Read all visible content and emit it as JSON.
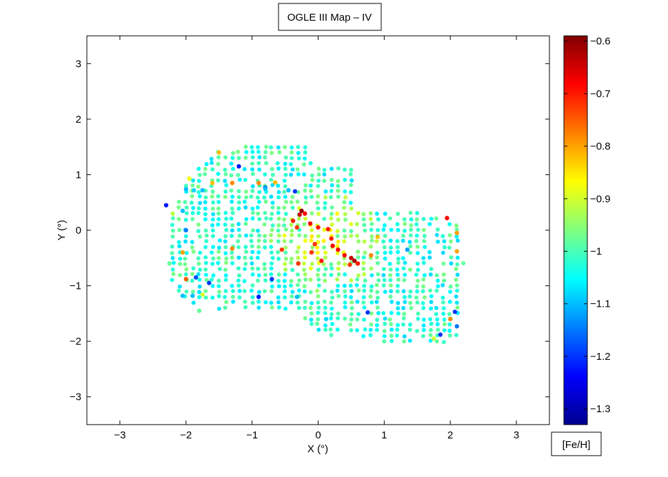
{
  "chart_data": {
    "type": "scatter",
    "title": "OGLE III Map – IV",
    "xlabel": "X (°)",
    "ylabel": "Y (°)",
    "xlim": [
      -3.5,
      3.5
    ],
    "ylim": [
      -3.5,
      3.5
    ],
    "xticks": [
      -3,
      -2,
      -1,
      0,
      1,
      2,
      3
    ],
    "yticks": [
      -3,
      -2,
      -1,
      0,
      1,
      2,
      3
    ],
    "xtick_labels": [
      "−3",
      "−2",
      "−1",
      "0",
      "1",
      "2",
      "3"
    ],
    "ytick_labels": [
      "−3",
      "−2",
      "−1",
      "0",
      "1",
      "2",
      "3"
    ],
    "grid": false,
    "colorbar": {
      "label": "[Fe/H]",
      "range": [
        -1.33,
        -0.59
      ],
      "ticks": [
        -0.6,
        -0.7,
        -0.8,
        -0.9,
        -1.0,
        -1.1,
        -1.2,
        -1.3
      ],
      "tick_labels": [
        "−0.6",
        "−0.7",
        "−0.8",
        "−0.9",
        "−1",
        "−1.1",
        "−1.2",
        "−1.3"
      ],
      "colormap": "jet"
    },
    "points": [
      [
        -1.5,
        1.4,
        -0.82
      ],
      [
        -1.2,
        1.15,
        -1.22
      ],
      [
        -0.35,
        0.7,
        -1.2
      ],
      [
        -0.8,
        0.77,
        -1.17
      ],
      [
        -0.9,
        0.85,
        -0.78
      ],
      [
        -0.65,
        0.86,
        -0.82
      ],
      [
        -1.6,
        0.85,
        -0.82
      ],
      [
        -1.95,
        0.93,
        -0.88
      ],
      [
        -2.3,
        0.45,
        -1.22
      ],
      [
        -2.0,
        0.74,
        -1.1
      ],
      [
        -1.88,
        0.72,
        -1.08
      ],
      [
        -1.75,
        0.72,
        -1.1
      ],
      [
        -2.05,
        0.35,
        -1.1
      ],
      [
        -2.0,
        0.0,
        -1.15
      ],
      [
        -2.05,
        -0.4,
        -0.8
      ],
      [
        -2.0,
        -0.88,
        -0.75
      ],
      [
        -1.85,
        -0.85,
        -1.18
      ],
      [
        -1.65,
        -0.95,
        -1.2
      ],
      [
        -2.05,
        -1.18,
        -1.1
      ],
      [
        -1.9,
        -1.18,
        -1.1
      ],
      [
        -1.75,
        -1.16,
        -0.9
      ],
      [
        -1.8,
        -1.45,
        -0.98
      ],
      [
        -1.3,
        -0.33,
        -0.78
      ],
      [
        -0.7,
        -0.88,
        -1.2
      ],
      [
        -0.9,
        -1.2,
        -1.22
      ],
      [
        -0.25,
        0.35,
        -0.6
      ],
      [
        -0.28,
        0.28,
        -0.65
      ],
      [
        -0.2,
        0.3,
        -0.68
      ],
      [
        -0.38,
        0.17,
        -0.7
      ],
      [
        -0.12,
        0.12,
        -0.68
      ],
      [
        -0.32,
        0.05,
        -0.72
      ],
      [
        0.0,
        0.05,
        -0.7
      ],
      [
        0.15,
        0.02,
        -0.7
      ],
      [
        0.2,
        -0.15,
        -0.7
      ],
      [
        0.22,
        -0.28,
        -0.68
      ],
      [
        0.3,
        -0.35,
        -0.68
      ],
      [
        0.4,
        -0.45,
        -0.68
      ],
      [
        0.5,
        -0.5,
        -0.64
      ],
      [
        0.55,
        -0.55,
        -0.62
      ],
      [
        0.6,
        -0.6,
        -0.7
      ],
      [
        0.48,
        -0.62,
        -0.72
      ],
      [
        -0.05,
        -0.25,
        -0.72
      ],
      [
        -0.1,
        -0.4,
        -0.72
      ],
      [
        0.05,
        -0.55,
        -0.7
      ],
      [
        -0.55,
        -0.35,
        -0.72
      ],
      [
        -0.3,
        -0.6,
        -0.72
      ],
      [
        0.8,
        -0.45,
        -0.78
      ],
      [
        0.9,
        -0.12,
        -0.82
      ],
      [
        1.95,
        0.22,
        -0.68
      ],
      [
        2.1,
        -0.05,
        -0.8
      ],
      [
        2.1,
        -0.38,
        -0.8
      ],
      [
        2.0,
        -1.6,
        -0.78
      ],
      [
        1.85,
        -1.88,
        -1.2
      ],
      [
        2.07,
        -1.47,
        -1.2
      ],
      [
        2.1,
        -1.73,
        -1.15
      ],
      [
        1.75,
        -1.95,
        -0.9
      ],
      [
        0.75,
        -1.48,
        -1.2
      ],
      [
        0.12,
        -1.6,
        -1.08
      ],
      [
        -0.32,
        -1.2,
        -1.1
      ],
      [
        1.35,
        -0.35,
        -1.12
      ],
      [
        -0.8,
        0.75,
        -1.1
      ],
      [
        -0.45,
        0.72,
        -1.1
      ],
      [
        -2.2,
        0.3,
        -0.92
      ],
      [
        -2.25,
        -0.6,
        -0.98
      ],
      [
        -1.3,
        0.85,
        -0.78
      ]
    ]
  }
}
